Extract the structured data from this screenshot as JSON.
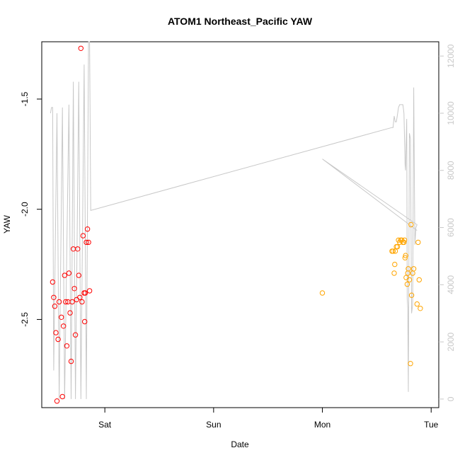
{
  "chart_data": {
    "type": "scatter",
    "title": "ATOM1 Northeast_Pacific YAW",
    "xlabel": "Date",
    "ylabel": "YAW",
    "x_ticks": [
      "Sat",
      "Sun",
      "Mon",
      "Tue"
    ],
    "x_tick_days": [
      1,
      2,
      3,
      4
    ],
    "xlim_days": [
      0.42,
      4.07
    ],
    "ylim": [
      -2.9,
      -1.24
    ],
    "y_ticks": [
      -1.5,
      -2.0,
      -2.5
    ],
    "y_tick_labels": [
      "-1.5",
      "-2.0",
      "-2.5"
    ],
    "y2lim": [
      -300,
      12500
    ],
    "y2_ticks": [
      0,
      2000,
      4000,
      6000,
      8000,
      10000,
      12000
    ],
    "y2_tick_labels": [
      "0",
      "2000",
      "4000",
      "6000",
      "8000",
      "10000",
      "12000"
    ],
    "colors": {
      "series_a": "#ff0000",
      "series_b": "#ffa500",
      "line": "#c8c8c8",
      "right_axis": "#c8c8c8"
    },
    "series": [
      {
        "color": "#ff0000",
        "marker": "open-circle",
        "points": [
          [
            0.52,
            -2.33
          ],
          [
            0.53,
            -2.4
          ],
          [
            0.54,
            -2.44
          ],
          [
            0.55,
            -2.56
          ],
          [
            0.56,
            -2.87
          ],
          [
            0.57,
            -2.59
          ],
          [
            0.58,
            -2.42
          ],
          [
            0.6,
            -2.49
          ],
          [
            0.61,
            -2.85
          ],
          [
            0.62,
            -2.53
          ],
          [
            0.63,
            -2.3
          ],
          [
            0.64,
            -2.42
          ],
          [
            0.65,
            -2.62
          ],
          [
            0.66,
            -2.42
          ],
          [
            0.67,
            -2.29
          ],
          [
            0.68,
            -2.47
          ],
          [
            0.69,
            -2.69
          ],
          [
            0.7,
            -2.42
          ],
          [
            0.71,
            -2.18
          ],
          [
            0.72,
            -2.36
          ],
          [
            0.73,
            -2.57
          ],
          [
            0.74,
            -2.41
          ],
          [
            0.75,
            -2.18
          ],
          [
            0.76,
            -2.3
          ],
          [
            0.77,
            -2.4
          ],
          [
            0.78,
            -1.27
          ],
          [
            0.79,
            -2.42
          ],
          [
            0.8,
            -2.12
          ],
          [
            0.81,
            -2.38
          ],
          [
            0.815,
            -2.51
          ],
          [
            0.82,
            -2.38
          ],
          [
            0.83,
            -2.15
          ],
          [
            0.84,
            -2.09
          ],
          [
            0.85,
            -2.15
          ],
          [
            0.86,
            -2.37
          ]
        ]
      },
      {
        "color": "#ffa500",
        "marker": "open-circle",
        "points": [
          [
            3.0,
            -2.38
          ],
          [
            3.64,
            -2.19
          ],
          [
            3.65,
            -2.19
          ],
          [
            3.66,
            -2.29
          ],
          [
            3.665,
            -2.25
          ],
          [
            3.67,
            -2.19
          ],
          [
            3.68,
            -2.17
          ],
          [
            3.69,
            -2.17
          ],
          [
            3.7,
            -2.14
          ],
          [
            3.71,
            -2.15
          ],
          [
            3.72,
            -2.14
          ],
          [
            3.73,
            -2.14
          ],
          [
            3.74,
            -2.15
          ],
          [
            3.75,
            -2.15
          ],
          [
            3.755,
            -2.14
          ],
          [
            3.76,
            -2.22
          ],
          [
            3.765,
            -2.21
          ],
          [
            3.77,
            -2.31
          ],
          [
            3.78,
            -2.34
          ],
          [
            3.785,
            -2.29
          ],
          [
            3.79,
            -2.27
          ],
          [
            3.8,
            -2.32
          ],
          [
            3.81,
            -2.7
          ],
          [
            3.815,
            -2.07
          ],
          [
            3.82,
            -2.39
          ],
          [
            3.83,
            -2.29
          ],
          [
            3.84,
            -2.27
          ],
          [
            3.87,
            -2.43
          ],
          [
            3.88,
            -2.15
          ],
          [
            3.89,
            -2.32
          ],
          [
            3.9,
            -2.45
          ]
        ]
      }
    ],
    "line_series": {
      "color": "#c8c8c8",
      "axis": "right",
      "points": [
        [
          0.5,
          10000
        ],
        [
          0.51,
          10200
        ],
        [
          0.52,
          10200
        ],
        [
          0.53,
          1000
        ],
        [
          0.56,
          10000
        ],
        [
          0.58,
          0
        ],
        [
          0.61,
          10200
        ],
        [
          0.63,
          0
        ],
        [
          0.67,
          10300
        ],
        [
          0.69,
          0
        ],
        [
          0.71,
          11100
        ],
        [
          0.73,
          0
        ],
        [
          0.76,
          11100
        ],
        [
          0.78,
          0
        ],
        [
          0.81,
          11700
        ],
        [
          0.83,
          0
        ],
        [
          0.85,
          12500
        ],
        [
          0.86,
          12500
        ],
        [
          0.87,
          6600
        ],
        [
          3.64,
          9500
        ],
        [
          3.65,
          9500
        ],
        [
          3.66,
          9900
        ],
        [
          3.67,
          9700
        ],
        [
          3.68,
          9700
        ],
        [
          3.7,
          10200
        ],
        [
          3.71,
          10300
        ],
        [
          3.73,
          10300
        ],
        [
          3.74,
          10300
        ],
        [
          3.75,
          10000
        ],
        [
          3.76,
          8200
        ],
        [
          3.765,
          8000
        ],
        [
          3.77,
          9000
        ],
        [
          3.775,
          9800
        ],
        [
          3.78,
          3500
        ],
        [
          3.785,
          3200
        ],
        [
          3.79,
          250
        ],
        [
          3.8,
          9300
        ],
        [
          3.81,
          9100
        ],
        [
          3.82,
          3000
        ],
        [
          3.83,
          3300
        ],
        [
          3.84,
          10900
        ],
        [
          3.85,
          5400
        ],
        [
          3.86,
          6000
        ],
        [
          3.87,
          6100
        ],
        [
          3.0,
          8400
        ],
        [
          3.87,
          5900
        ]
      ]
    }
  }
}
